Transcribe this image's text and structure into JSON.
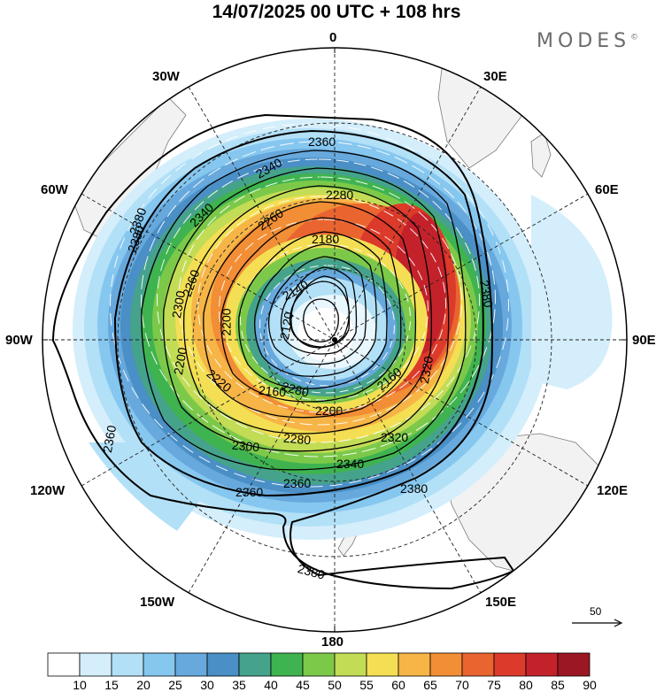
{
  "header": {
    "title": "14/07/2025  00 UTC  + 108 hrs",
    "brand": "MODES",
    "brand_mark": "©"
  },
  "map": {
    "projection": "polar stereographic (south pole)",
    "longitude_labels": {
      "top": "0",
      "bottom": "180",
      "left": "90W",
      "right": "90E",
      "upper_left_30": "30W",
      "upper_right_30": "30E",
      "upper_left_60": "60W",
      "upper_right_60": "60E",
      "lower_left_120": "120W",
      "lower_right_120": "120E",
      "lower_left_150": "150W",
      "lower_right_150": "150E"
    },
    "contour_labels": [
      "2360",
      "2340",
      "2280",
      "2260",
      "2180",
      "2380",
      "2340",
      "2260",
      "2200",
      "2140",
      "2120",
      "2300",
      "2200",
      "2280",
      "2220",
      "2160",
      "2160",
      "2200",
      "2280",
      "2300",
      "2320",
      "2340",
      "2360",
      "2360",
      "2380",
      "2380",
      "2380",
      "2360",
      "2320",
      "2380"
    ],
    "reference_vector_label": "50"
  },
  "colorbar": {
    "labels": [
      "10",
      "15",
      "20",
      "25",
      "30",
      "35",
      "40",
      "45",
      "50",
      "55",
      "60",
      "65",
      "70",
      "75",
      "80",
      "85",
      "90"
    ],
    "colors": [
      "#ffffff",
      "#d4eefb",
      "#b2e0f7",
      "#86c7ef",
      "#67a9dd",
      "#4a8fc6",
      "#45a38b",
      "#3fb34f",
      "#7cc94a",
      "#c3dc55",
      "#f4df54",
      "#f6b546",
      "#f28e35",
      "#ea6430",
      "#dc3a2a",
      "#c4222b",
      "#9b1723"
    ]
  }
}
